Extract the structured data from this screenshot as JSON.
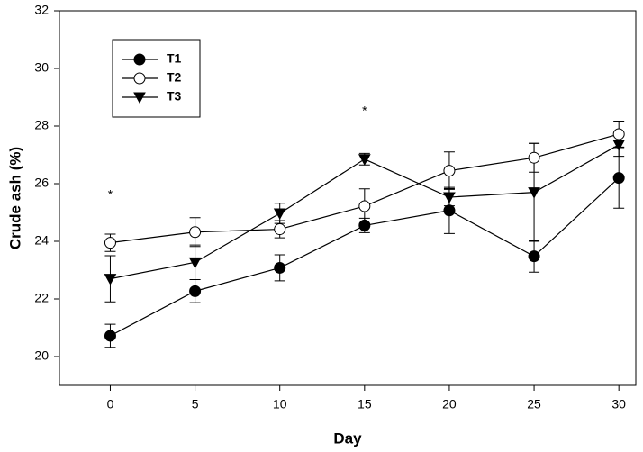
{
  "chart_data": {
    "type": "line",
    "x_label": "Day",
    "y_label": "Crude ash (%)",
    "x": [
      0,
      5,
      10,
      15,
      20,
      25,
      30
    ],
    "series": [
      {
        "name": "T1",
        "color": "#000000",
        "marker": "filled-circle",
        "values": [
          20.72,
          22.27,
          23.08,
          24.55,
          25.07,
          23.48,
          26.2
        ],
        "errors": [
          0.4,
          0.4,
          0.45,
          0.25,
          0.8,
          0.55,
          1.05
        ]
      },
      {
        "name": "T2",
        "color": "#000000",
        "marker": "open-circle",
        "values": [
          23.95,
          24.32,
          24.42,
          25.22,
          26.45,
          26.9,
          27.72
        ],
        "errors": [
          0.3,
          0.5,
          0.3,
          0.6,
          0.65,
          0.5,
          0.45
        ]
      },
      {
        "name": "T3",
        "color": "#000000",
        "marker": "triangle-down",
        "values": [
          22.7,
          23.27,
          24.97,
          26.85,
          25.53,
          25.7,
          27.35
        ],
        "errors": [
          0.8,
          0.6,
          0.35,
          0.2,
          0.3,
          1.7,
          0.4
        ]
      }
    ],
    "annotations": [
      {
        "text": "*",
        "x": 0,
        "y": 25.6
      },
      {
        "text": "*",
        "x": 15,
        "y": 28.5
      }
    ],
    "xlim": [
      -3,
      31
    ],
    "xticks": [
      0,
      5,
      10,
      15,
      20,
      25,
      30
    ],
    "ylim": [
      19,
      32
    ],
    "yticks": [
      20,
      22,
      24,
      26,
      28,
      30,
      32
    ],
    "legend": "upper left",
    "grid": false
  }
}
